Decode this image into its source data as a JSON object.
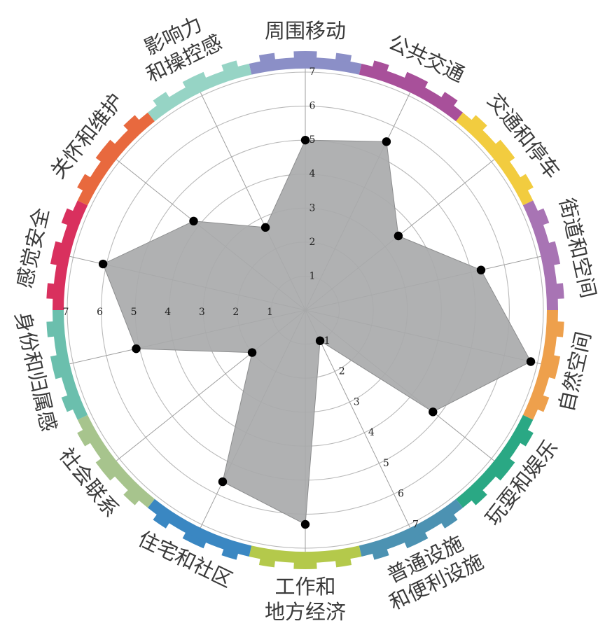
{
  "chart_data": {
    "type": "radar",
    "title": "",
    "rmax": 7,
    "radial_ticks": [
      "1",
      "2",
      "3",
      "4",
      "5",
      "6",
      "7"
    ],
    "categories": [
      {
        "label": [
          "周围移动"
        ],
        "value": 5.0,
        "color": "#8b8fc7"
      },
      {
        "label": [
          "公共交通"
        ],
        "value": 5.5,
        "color": "#a8509a"
      },
      {
        "label": [
          "交通和停车"
        ],
        "value": 3.5,
        "color": "#f2cc3f"
      },
      {
        "label": [
          "街道和空间"
        ],
        "value": 5.3,
        "color": "#a874b4"
      },
      {
        "label": [
          "自然空间"
        ],
        "value": 6.8,
        "color": "#eea04c"
      },
      {
        "label": [
          "玩耍和娱乐"
        ],
        "value": 4.8,
        "color": "#2aa884"
      },
      {
        "label": [
          "普通设施",
          "和便利设施"
        ],
        "value": 1.0,
        "color": "#4c92b2"
      },
      {
        "label": [
          "工作和",
          "地方经济"
        ],
        "value": 6.3,
        "color": "#b4c94b"
      },
      {
        "label": [
          "住宅和社区"
        ],
        "value": 5.6,
        "color": "#3a87c2"
      },
      {
        "label": [
          "社会联系"
        ],
        "value": 2.0,
        "color": "#a7c48d"
      },
      {
        "label": [
          "身份和归属感"
        ],
        "value": 5.1,
        "color": "#6bbfad"
      },
      {
        "label": [
          "感觉安全"
        ],
        "value": 6.1,
        "color": "#d9305e"
      },
      {
        "label": [
          "关怀和维护"
        ],
        "value": 4.2,
        "color": "#e8693e"
      },
      {
        "label": [
          "影响力",
          "和操控感"
        ],
        "value": 2.7,
        "color": "#96d4c5"
      }
    ],
    "grid": true,
    "fill_color": "#a9aaab",
    "marker_color": "#000000"
  }
}
